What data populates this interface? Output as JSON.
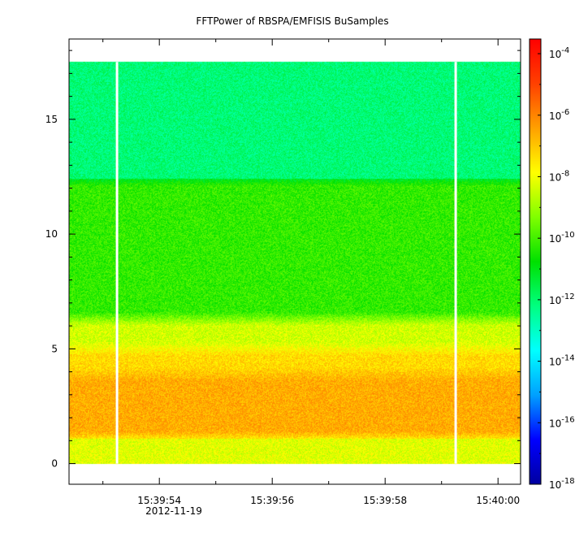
{
  "chart_data": {
    "type": "heatmap",
    "title": "FFTPower of RBSPA/EMFISIS  BuSamples",
    "xlabel": "",
    "ylabel": "",
    "x_axis": {
      "type": "time",
      "range": [
        "15:39:52.4",
        "15:40:00.4"
      ],
      "tick_labels": [
        "15:39:54",
        "15:39:56",
        "15:39:58",
        "15:40:00"
      ],
      "tick_values_sec": [
        54,
        56,
        58,
        60
      ],
      "minor_tick_values_sec": [
        53,
        55,
        57,
        59
      ],
      "date_label": "2012-11-19"
    },
    "y_axis": {
      "range": [
        -0.9,
        18.5
      ],
      "tick_labels": [
        "0",
        "5",
        "10",
        "15"
      ],
      "tick_values": [
        0,
        5,
        10,
        15
      ]
    },
    "colorbar": {
      "scale": "log",
      "range": [
        1e-18,
        0.0003
      ],
      "tick_labels": [
        {
          "base": "10",
          "exp": "-4",
          "value": -4
        },
        {
          "base": "10",
          "exp": "-6",
          "value": -6
        },
        {
          "base": "10",
          "exp": "-8",
          "value": -8
        },
        {
          "base": "10",
          "exp": "-10",
          "value": -10
        },
        {
          "base": "10",
          "exp": "-12",
          "value": -12
        },
        {
          "base": "10",
          "exp": "-14",
          "value": -14
        },
        {
          "base": "10",
          "exp": "-16",
          "value": -16
        },
        {
          "base": "10",
          "exp": "-18",
          "value": -18
        }
      ],
      "colormap": [
        "#0000a0",
        "#0000ff",
        "#00a0ff",
        "#00ffff",
        "#00ff80",
        "#00e000",
        "#80ff00",
        "#ffff00",
        "#ffa000",
        "#ff4000",
        "#ff0000"
      ]
    },
    "data_extent": {
      "y_min": 0,
      "y_max": 17.5
    },
    "data_gaps_time_sec": [
      53.25,
      59.25
    ],
    "frequency_bands": [
      {
        "y_from": 0.0,
        "y_to": 1.1,
        "log_power": -8.2
      },
      {
        "y_from": 1.1,
        "y_to": 3.9,
        "log_power": -6.6
      },
      {
        "y_from": 3.9,
        "y_to": 5.0,
        "log_power": -7.3
      },
      {
        "y_from": 5.0,
        "y_to": 6.3,
        "log_power": -8.4
      },
      {
        "y_from": 6.3,
        "y_to": 12.4,
        "log_power": -10.2
      },
      {
        "y_from": 12.4,
        "y_to": 17.5,
        "log_power": -12.1
      }
    ]
  }
}
